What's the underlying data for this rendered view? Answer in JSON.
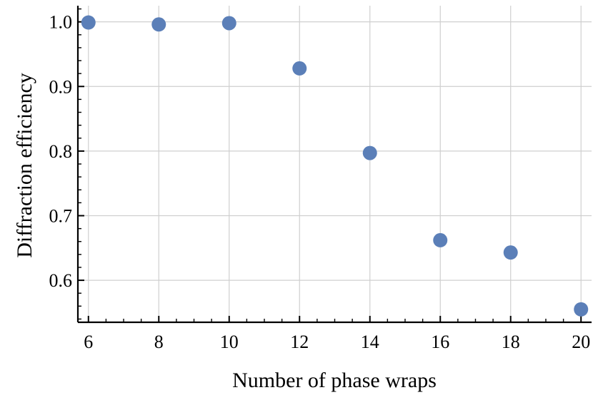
{
  "chart_data": {
    "type": "scatter",
    "title": "",
    "xlabel": "Number of phase wraps",
    "ylabel": "Diffraction efficiency",
    "xlim": [
      5.7,
      20.3
    ],
    "ylim": [
      0.535,
      1.025
    ],
    "x_ticks": [
      6,
      8,
      10,
      12,
      14,
      16,
      18,
      20
    ],
    "x_tick_labels": [
      "6",
      "8",
      "10",
      "12",
      "14",
      "16",
      "18",
      "20"
    ],
    "y_ticks": [
      0.6,
      0.7,
      0.8,
      0.9,
      1.0
    ],
    "y_tick_labels": [
      "0.6",
      "0.7",
      "0.8",
      "0.9",
      "1.0"
    ],
    "grid": true,
    "legend": "none",
    "point_color": "#5b7fb8",
    "x": [
      6,
      8,
      10,
      12,
      14,
      16,
      18,
      20
    ],
    "y": [
      0.999,
      0.996,
      0.998,
      0.928,
      0.797,
      0.662,
      0.643,
      0.555
    ]
  }
}
